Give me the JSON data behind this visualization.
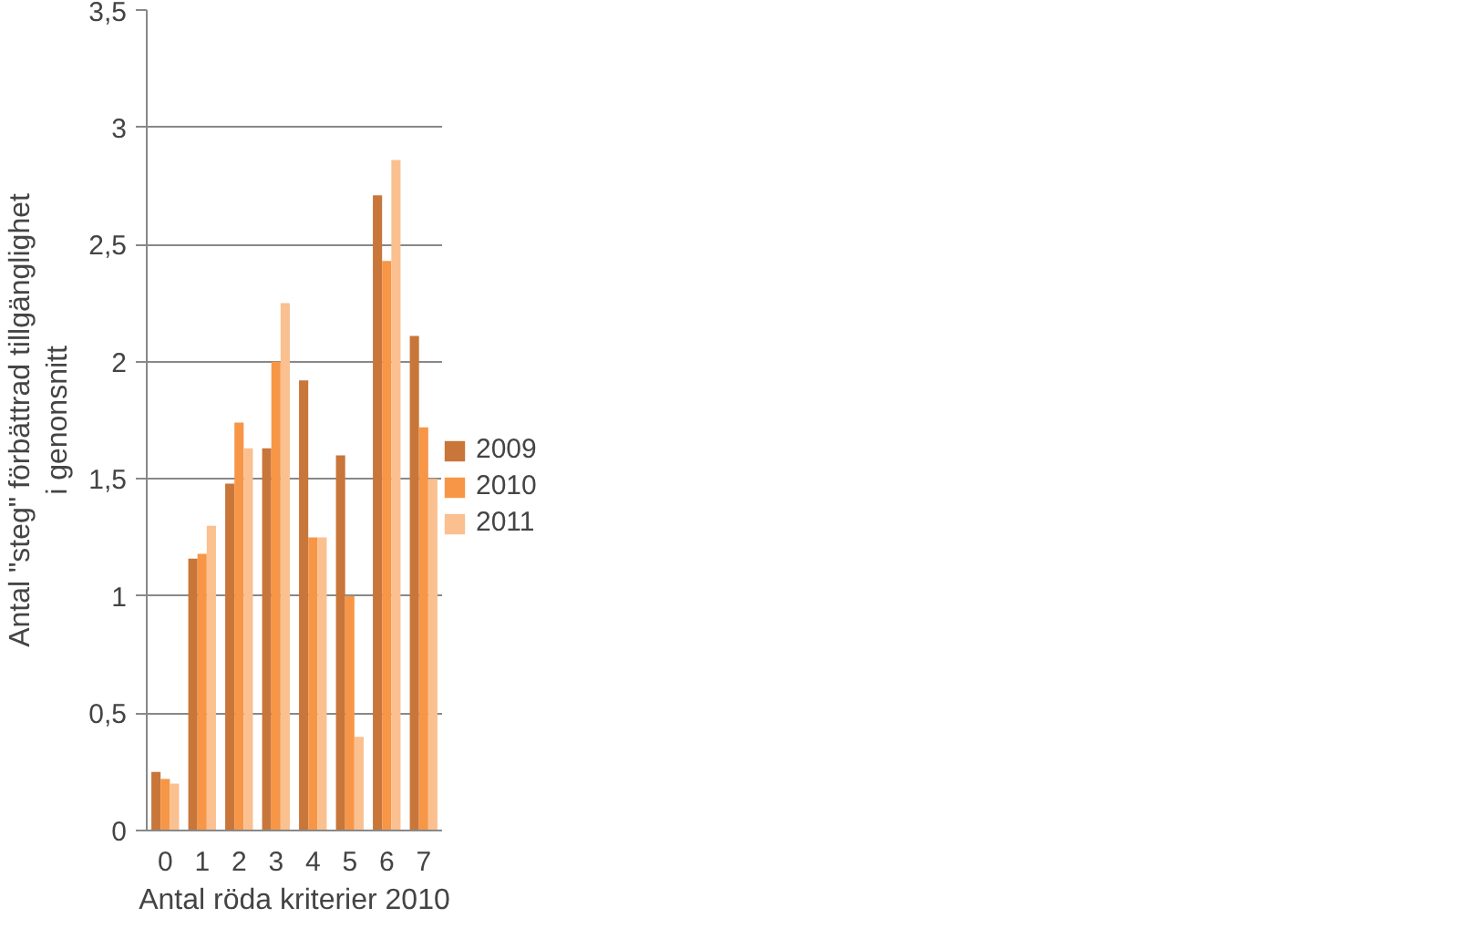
{
  "chart_data": {
    "type": "bar",
    "xlabel": "Antal röda kriterier 2010",
    "ylabel": "Antal \"steg\" förbättrad tillgänglighet\ni genonsnitt",
    "categories": [
      "0",
      "1",
      "2",
      "3",
      "4",
      "5",
      "6",
      "7"
    ],
    "series": [
      {
        "name": "2009",
        "color": "#c8763a",
        "values": [
          0.25,
          1.16,
          1.48,
          1.63,
          1.92,
          1.6,
          2.71,
          2.11
        ]
      },
      {
        "name": "2010",
        "color": "#f79646",
        "values": [
          0.22,
          1.18,
          1.74,
          2.0,
          1.25,
          1.0,
          2.43,
          1.72
        ]
      },
      {
        "name": "2011",
        "color": "#fac090",
        "values": [
          0.2,
          1.3,
          1.63,
          2.25,
          1.25,
          0.4,
          2.86,
          1.5
        ]
      }
    ],
    "ylim": [
      0,
      3.5
    ],
    "yticks": [
      0,
      {
        "value": 0.5,
        "label": "0,5"
      },
      1,
      {
        "value": 1.5,
        "label": "1,5"
      },
      2,
      {
        "value": 2.5,
        "label": "2,5"
      },
      3,
      {
        "value": 3.5,
        "label": "3,5"
      }
    ],
    "grid": "y",
    "legend": "right"
  }
}
